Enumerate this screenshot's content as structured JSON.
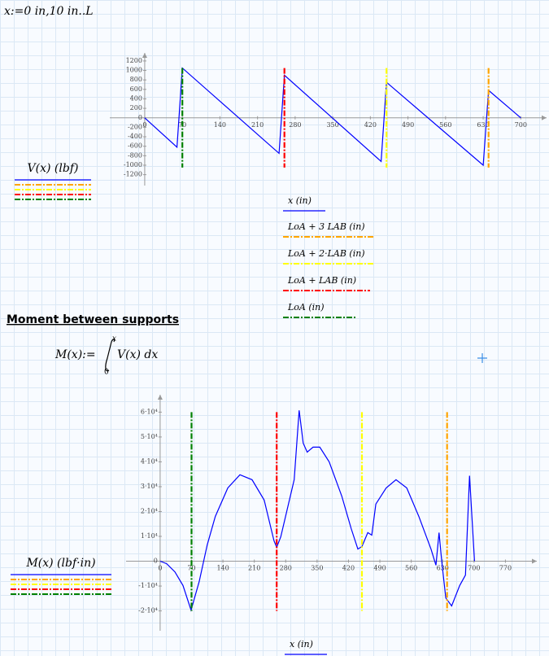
{
  "worksheet": {
    "definition": "x:=0 in,10 in..L",
    "heading": "Moment between supports",
    "formula": {
      "lhs": "M(x):=",
      "upper": "x",
      "lower": "0",
      "integrand": "V(x) dx"
    }
  },
  "chart_data": [
    {
      "type": "line",
      "xlim": [
        -65,
        748
      ],
      "ylim": [
        -1430,
        1370
      ],
      "xticks": [
        0,
        70,
        140,
        210,
        280,
        350,
        420,
        490,
        560,
        630,
        700
      ],
      "yticks": [
        -1200,
        -1000,
        -800,
        -600,
        -400,
        -200,
        0,
        200,
        400,
        600,
        800,
        1000,
        1200
      ],
      "series": [
        {
          "name": "V(x)  (lbf)",
          "x_name": "x  (in)",
          "color": "#0000ff",
          "x": [
            0,
            60,
            70,
            250,
            260,
            440,
            450,
            630,
            640,
            700
          ],
          "values": [
            0,
            -620,
            1050,
            -750,
            900,
            -920,
            750,
            -1000,
            580,
            0
          ]
        },
        {
          "name": "LoA + 3 LAB  (in)",
          "color": "#ffa500",
          "x": [
            640,
            640
          ],
          "values": [
            1050,
            -1050
          ]
        },
        {
          "name": "LoA + 2·LAB  (in)",
          "color": "#ffff00",
          "x": [
            450,
            450
          ],
          "values": [
            1050,
            -1050
          ]
        },
        {
          "name": "LoA + LAB  (in)",
          "color": "#ff0000",
          "x": [
            260,
            260
          ],
          "values": [
            1050,
            -1050
          ]
        },
        {
          "name": "LoA  (in)",
          "color": "#008000",
          "x": [
            70,
            70
          ],
          "values": [
            1050,
            -1050
          ]
        }
      ]
    },
    {
      "type": "line",
      "xlim": [
        -76,
        840
      ],
      "ylim": [
        -28000,
        67000
      ],
      "xticks": [
        0,
        70,
        140,
        210,
        280,
        350,
        420,
        490,
        560,
        630,
        700,
        770
      ],
      "yticks": [
        {
          "value": -20000,
          "label": "-2·10⁴"
        },
        {
          "value": -10000,
          "label": "-1·10⁴"
        },
        0,
        {
          "value": 10000,
          "label": "1·10⁴"
        },
        {
          "value": 20000,
          "label": "2·10⁴"
        },
        {
          "value": 30000,
          "label": "3·10⁴"
        },
        {
          "value": 40000,
          "label": "4·10⁴"
        },
        {
          "value": 50000,
          "label": "5·10⁴"
        },
        {
          "value": 60000,
          "label": "6·10⁴"
        }
      ],
      "series": [
        {
          "name": "M(x)  (lbf·in)",
          "x_name": "x  (in)",
          "color": "#0000ff",
          "x": [
            0,
            14.5,
            33,
            51,
            69,
            87,
            105,
            123,
            151,
            178,
            205,
            232,
            254,
            260,
            269,
            299,
            310,
            319,
            328,
            341,
            356,
            377,
            405,
            426,
            441,
            450,
            463,
            472,
            481,
            504,
            526,
            550,
            577,
            604,
            615,
            622,
            628,
            637,
            650,
            668,
            681,
            690,
            701
          ],
          "values": [
            0,
            -1000,
            -4300,
            -9800,
            -19700,
            -8200,
            6600,
            18000,
            29500,
            34800,
            32800,
            24600,
            8200,
            5600,
            9800,
            32800,
            60700,
            47500,
            43900,
            45900,
            45900,
            40000,
            26200,
            13100,
            4900,
            5900,
            11500,
            10500,
            23000,
            29500,
            32800,
            29500,
            18000,
            4900,
            -1600,
            11500,
            0,
            -14800,
            -18000,
            -9800,
            -5600,
            34400,
            0
          ]
        },
        {
          "name": "",
          "color": "#ffa500",
          "x": [
            640,
            640
          ],
          "values": [
            60000,
            -20000
          ]
        },
        {
          "name": "",
          "color": "#ffff00",
          "x": [
            450,
            450
          ],
          "values": [
            60000,
            -20000
          ]
        },
        {
          "name": "",
          "color": "#ff0000",
          "x": [
            260,
            260
          ],
          "values": [
            60000,
            -20000
          ]
        },
        {
          "name": "",
          "color": "#008000",
          "x": [
            70,
            70
          ],
          "values": [
            60000,
            -20000
          ]
        }
      ]
    }
  ]
}
